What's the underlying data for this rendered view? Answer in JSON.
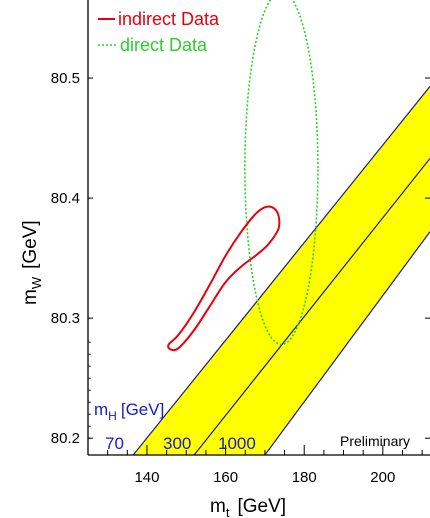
{
  "chart_data": {
    "type": "contour",
    "xlabel": {
      "main": "m",
      "sub": "t",
      "unit": "[GeV]"
    },
    "ylabel": {
      "main": "m",
      "sub": "W",
      "unit": "[GeV]"
    },
    "xlim": [
      125,
      212
    ],
    "ylim": [
      80.186,
      80.565
    ],
    "x_ticks": [
      140,
      160,
      180,
      200
    ],
    "y_ticks": [
      80.2,
      80.3,
      80.4,
      80.5
    ],
    "x_tick_labels": [
      "140",
      "160",
      "180",
      "200"
    ],
    "y_tick_labels": [
      "80.2",
      "80.3",
      "80.4",
      "80.5"
    ],
    "legend": [
      {
        "name": "indirect Data",
        "color": "#e8000b",
        "style": "solid"
      },
      {
        "name": "direct Data",
        "color": "#2bd12b",
        "style": "dotted"
      }
    ],
    "legend_position": "top-left",
    "higgs_band": {
      "fill": "#ffff00",
      "line_color": "#1a1a99",
      "title": {
        "main": "m",
        "sub": "H",
        "unit": "[GeV]"
      },
      "lines": [
        {
          "label": "70",
          "x_at_bottom": 136.5,
          "x_at_top": 212.0,
          "y_at_top": 80.493
        },
        {
          "label": "300",
          "x_at_bottom": 152.0,
          "x_at_top": 212.0,
          "y_at_top": 80.433
        },
        {
          "label": "1000",
          "x_at_bottom": 170.0,
          "x_at_top": 212.0,
          "y_at_top": 80.372
        }
      ]
    },
    "indirect_contour": {
      "name": "indirect Data",
      "color": "#e8000b",
      "points": [
        [
          146,
          80.274
        ],
        [
          148,
          80.275
        ],
        [
          152,
          80.29
        ],
        [
          156,
          80.31
        ],
        [
          160,
          80.33
        ],
        [
          164,
          80.343
        ],
        [
          168,
          80.353
        ],
        [
          171,
          80.362
        ],
        [
          173.5,
          80.375
        ],
        [
          173.2,
          80.388
        ],
        [
          171,
          80.393
        ],
        [
          168,
          80.388
        ],
        [
          164,
          80.372
        ],
        [
          160,
          80.352
        ],
        [
          156,
          80.328
        ],
        [
          152,
          80.305
        ],
        [
          148,
          80.286
        ],
        [
          145.5,
          80.278
        ]
      ]
    },
    "direct_contour": {
      "name": "direct Data",
      "color": "#2bd12b",
      "center": [
        174.2,
        80.425
      ],
      "half_width": 9.3,
      "half_height": 0.147
    },
    "annotation": "Preliminary"
  },
  "text": {
    "x_title_main": "m",
    "x_title_sub": "t",
    "x_title_unit": "[GeV]",
    "y_title_main": "m",
    "y_title_sub": "W",
    "y_title_unit": "[GeV]",
    "mh_title_main": "m",
    "mh_title_sub": "H",
    "mh_title_unit": "[GeV]",
    "legend_indirect": "indirect Data",
    "legend_direct": "direct Data",
    "mh_70": "70",
    "mh_300": "300",
    "mh_1000": "1000",
    "preliminary": "Preliminary",
    "x_tick_140": "140",
    "x_tick_160": "160",
    "x_tick_180": "180",
    "x_tick_200": "200",
    "y_tick_802": "80.2",
    "y_tick_803": "80.3",
    "y_tick_804": "80.4",
    "y_tick_805": "80.5"
  }
}
